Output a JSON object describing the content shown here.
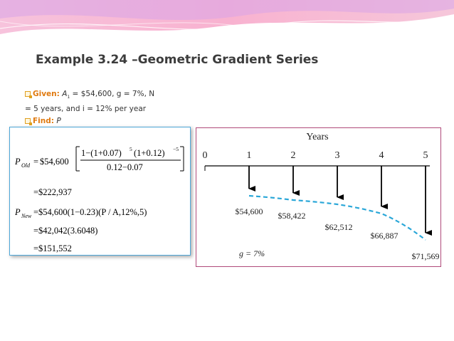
{
  "slide": {
    "title": "Example 3.24 –Geometric Gradient Series",
    "given_label": "Given:",
    "given_line1_rest": " = $54,600, g = 7%, N",
    "given_line2": "= 5 years, and i = 12% per year",
    "find_label": "Find:",
    "find_value": "P"
  },
  "formula": {
    "p_old_label": "P",
    "p_old_sub": "Old",
    "eq": "=",
    "coef": "$54,600",
    "num_1": "1−(1+0.07)",
    "num_exp1": "5",
    "num_2": "(1+0.12)",
    "num_exp2": "−5",
    "den": "0.12−0.07",
    "line2": "=$222,937",
    "p_new_label": "P",
    "p_new_sub": "New",
    "line3": "=$54,600(1−0.23)(P / A,12%,5)",
    "line4": "=$42,042(3.6048)",
    "line5": "=$151,552"
  },
  "diagram": {
    "axis_title": "Years",
    "years": [
      "0",
      "1",
      "2",
      "3",
      "4",
      "5"
    ],
    "amounts": [
      "$54,600",
      "$58,422",
      "$62,512",
      "$66,887",
      "$71,569"
    ],
    "gradient_label": "g = 7%",
    "arrow_color": "#000000",
    "curve_color": "#2aa7d8"
  }
}
